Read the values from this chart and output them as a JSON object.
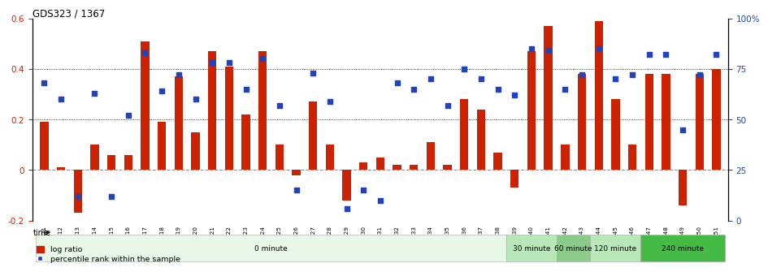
{
  "title": "GDS323 / 1367",
  "samples": [
    "GSM5811",
    "GSM5812",
    "GSM5813",
    "GSM5814",
    "GSM5815",
    "GSM5816",
    "GSM5817",
    "GSM5818",
    "GSM5819",
    "GSM5820",
    "GSM5821",
    "GSM5822",
    "GSM5823",
    "GSM5824",
    "GSM5825",
    "GSM5826",
    "GSM5827",
    "GSM5828",
    "GSM5829",
    "GSM5830",
    "GSM5831",
    "GSM5832",
    "GSM5833",
    "GSM5834",
    "GSM5835",
    "GSM5836",
    "GSM5837",
    "GSM5838",
    "GSM5839",
    "GSM5840",
    "GSM5841",
    "GSM5842",
    "GSM5843",
    "GSM5844",
    "GSM5845",
    "GSM5846",
    "GSM5847",
    "GSM5848",
    "GSM5849",
    "GSM5850",
    "GSM5851"
  ],
  "log_ratio": [
    0.19,
    0.01,
    -0.17,
    0.1,
    0.06,
    0.06,
    0.51,
    0.19,
    0.37,
    0.15,
    0.47,
    0.41,
    0.22,
    0.47,
    0.1,
    -0.02,
    0.27,
    0.1,
    -0.12,
    0.03,
    0.05,
    0.02,
    0.02,
    0.11,
    0.02,
    0.28,
    0.24,
    0.07,
    -0.07,
    0.47,
    0.57,
    0.1,
    0.38,
    0.59,
    0.28,
    0.1,
    0.38,
    0.38,
    -0.14,
    0.38,
    0.4
  ],
  "percentile_pct": [
    68,
    60,
    12,
    63,
    12,
    52,
    83,
    64,
    72,
    60,
    78,
    78,
    65,
    80,
    57,
    15,
    73,
    59,
    6,
    15,
    10,
    68,
    65,
    70,
    57,
    75,
    70,
    65,
    62,
    85,
    84,
    65,
    72,
    85,
    70,
    72,
    82,
    82,
    45,
    72,
    82
  ],
  "bar_color": "#cc2200",
  "dot_color": "#2244bb",
  "ylim_left": [
    -0.2,
    0.6
  ],
  "ylim_right": [
    0,
    100
  ],
  "yticks_left": [
    -0.2,
    0.0,
    0.2,
    0.4,
    0.6
  ],
  "ytick_labels_left": [
    "-0.2",
    "0",
    "0.2",
    "0.4",
    "0.6"
  ],
  "yticks_right": [
    0,
    25,
    50,
    75,
    100
  ],
  "ytick_labels_right": [
    "0",
    "25",
    "50",
    "75",
    "100%"
  ],
  "hlines": [
    0.2,
    0.4
  ],
  "time_groups": [
    {
      "label": "0 minute",
      "start": 0,
      "end": 28,
      "color": "#e8f8e8"
    },
    {
      "label": "30 minute",
      "start": 28,
      "end": 31,
      "color": "#b8e8b8"
    },
    {
      "label": "60 minute",
      "start": 31,
      "end": 33,
      "color": "#88cc88"
    },
    {
      "label": "120 minute",
      "start": 33,
      "end": 36,
      "color": "#b8e8b8"
    },
    {
      "label": "240 minute",
      "start": 36,
      "end": 41,
      "color": "#44bb44"
    }
  ],
  "legend_bar_label": "log ratio",
  "legend_dot_label": "percentile rank within the sample",
  "time_label": "time",
  "background_color": "#ffffff"
}
